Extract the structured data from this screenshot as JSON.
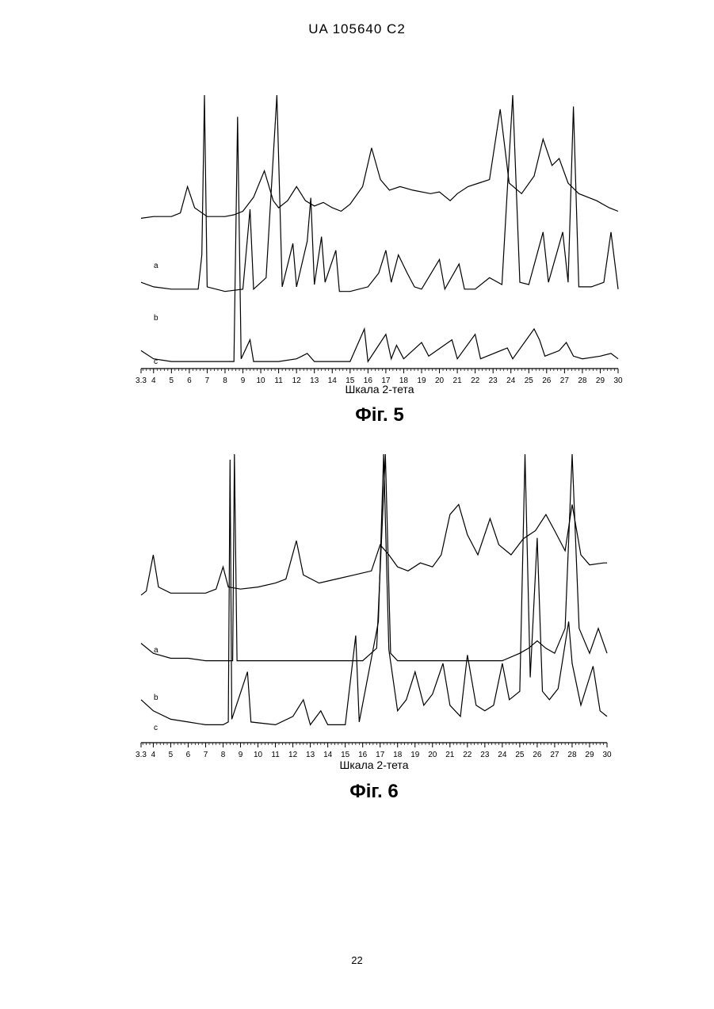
{
  "page": {
    "header": "UA   105640   C2",
    "page_number": "22"
  },
  "chart_data": [
    {
      "type": "line",
      "figure_label": "Фіг. 5",
      "xlabel": "Шкала 2-тета",
      "ylabel": "",
      "x_ticks": [
        "3.3",
        "4",
        "5",
        "6",
        "7",
        "8",
        "9",
        "10",
        "11",
        "12",
        "13",
        "14",
        "15",
        "16",
        "17",
        "18",
        "19",
        "20",
        "21",
        "22",
        "23",
        "24",
        "25",
        "26",
        "27",
        "28",
        "29",
        "30"
      ],
      "xlim": [
        3.3,
        30
      ],
      "ylim": [
        0,
        100
      ],
      "grid": false,
      "series": [
        {
          "name": "a",
          "baseline": 30,
          "points": [
            [
              3.3,
              30
            ],
            [
              4,
              31
            ],
            [
              5,
              31
            ],
            [
              5.5,
              33
            ],
            [
              5.9,
              48
            ],
            [
              6.3,
              36
            ],
            [
              7,
              31
            ],
            [
              8,
              31
            ],
            [
              8.5,
              32
            ],
            [
              9,
              34
            ],
            [
              9.6,
              42
            ],
            [
              10.2,
              57
            ],
            [
              10.7,
              40
            ],
            [
              11,
              36
            ],
            [
              11.5,
              40
            ],
            [
              12,
              48
            ],
            [
              12.5,
              40
            ],
            [
              13,
              37
            ],
            [
              13.5,
              39
            ],
            [
              14,
              36
            ],
            [
              14.5,
              34
            ],
            [
              15,
              38
            ],
            [
              15.7,
              48
            ],
            [
              16.2,
              70
            ],
            [
              16.7,
              52
            ],
            [
              17.2,
              46
            ],
            [
              17.8,
              48
            ],
            [
              18.5,
              46
            ],
            [
              19.5,
              44
            ],
            [
              20,
              45
            ],
            [
              20.6,
              40
            ],
            [
              21,
              44
            ],
            [
              21.6,
              48
            ],
            [
              22.2,
              50
            ],
            [
              22.8,
              52
            ],
            [
              23.4,
              92
            ],
            [
              23.9,
              50
            ],
            [
              24.6,
              44
            ],
            [
              25.3,
              54
            ],
            [
              25.8,
              75
            ],
            [
              26.3,
              60
            ],
            [
              26.7,
              64
            ],
            [
              27.2,
              50
            ],
            [
              27.8,
              44
            ],
            [
              28.8,
              40
            ],
            [
              29.5,
              36
            ],
            [
              30,
              34
            ]
          ]
        },
        {
          "name": "b",
          "baseline": 14,
          "points": [
            [
              3.3,
              18
            ],
            [
              4,
              16
            ],
            [
              5,
              15
            ],
            [
              6,
              15
            ],
            [
              6.5,
              15
            ],
            [
              6.7,
              30
            ],
            [
              6.85,
              100
            ],
            [
              7,
              16
            ],
            [
              8,
              14
            ],
            [
              9,
              15
            ],
            [
              9.4,
              50
            ],
            [
              9.6,
              15
            ],
            [
              10.3,
              20
            ],
            [
              10.9,
              100
            ],
            [
              11.2,
              16
            ],
            [
              11.8,
              35
            ],
            [
              12,
              16
            ],
            [
              12.6,
              36
            ],
            [
              12.8,
              55
            ],
            [
              13,
              17
            ],
            [
              13.4,
              38
            ],
            [
              13.6,
              18
            ],
            [
              14.2,
              32
            ],
            [
              14.4,
              14
            ],
            [
              15,
              14
            ],
            [
              16,
              16
            ],
            [
              16.6,
              22
            ],
            [
              17,
              32
            ],
            [
              17.3,
              18
            ],
            [
              17.7,
              30
            ],
            [
              18.2,
              22
            ],
            [
              18.6,
              16
            ],
            [
              19,
              15
            ],
            [
              20,
              28
            ],
            [
              20.3,
              15
            ],
            [
              21.1,
              26
            ],
            [
              21.4,
              15
            ],
            [
              22,
              15
            ],
            [
              22.8,
              20
            ],
            [
              23.5,
              17
            ],
            [
              24.1,
              100
            ],
            [
              24.5,
              18
            ],
            [
              25,
              17
            ],
            [
              25.8,
              40
            ],
            [
              26.1,
              18
            ],
            [
              26.9,
              40
            ],
            [
              27.2,
              18
            ],
            [
              27.5,
              95
            ],
            [
              27.8,
              16
            ],
            [
              28.5,
              16
            ],
            [
              29.2,
              18
            ],
            [
              29.6,
              40
            ],
            [
              30,
              15
            ]
          ]
        },
        {
          "name": "c",
          "baseline": 2,
          "points": [
            [
              3.3,
              6
            ],
            [
              4,
              3
            ],
            [
              5,
              2
            ],
            [
              6,
              2
            ],
            [
              7,
              2
            ],
            [
              8,
              2
            ],
            [
              8.5,
              2
            ],
            [
              8.7,
              92
            ],
            [
              8.9,
              3
            ],
            [
              9.4,
              10
            ],
            [
              9.6,
              2
            ],
            [
              11,
              2
            ],
            [
              12,
              3
            ],
            [
              12.6,
              5
            ],
            [
              13,
              2
            ],
            [
              15,
              2
            ],
            [
              15.8,
              14
            ],
            [
              16,
              2
            ],
            [
              17,
              12
            ],
            [
              17.3,
              3
            ],
            [
              17.6,
              8
            ],
            [
              18,
              3
            ],
            [
              19,
              9
            ],
            [
              19.4,
              4
            ],
            [
              20.7,
              10
            ],
            [
              21,
              3
            ],
            [
              22,
              12
            ],
            [
              22.3,
              3
            ],
            [
              23.8,
              7
            ],
            [
              24.1,
              3
            ],
            [
              25.3,
              14
            ],
            [
              25.6,
              10
            ],
            [
              25.9,
              4
            ],
            [
              26.7,
              6
            ],
            [
              27.1,
              9
            ],
            [
              27.5,
              4
            ],
            [
              28,
              3
            ],
            [
              29,
              4
            ],
            [
              29.6,
              5
            ],
            [
              30,
              3
            ]
          ]
        }
      ]
    },
    {
      "type": "line",
      "figure_label": "Фіг. 6",
      "xlabel": "Шкала 2-тета",
      "ylabel": "",
      "x_ticks": [
        "3.3",
        "4",
        "5",
        "6",
        "7",
        "8",
        "9",
        "10",
        "11",
        "12",
        "13",
        "14",
        "15",
        "16",
        "17",
        "18",
        "19",
        "20",
        "21",
        "22",
        "23",
        "24",
        "25",
        "26",
        "27",
        "28",
        "29",
        "30"
      ],
      "xlim": [
        3.3,
        30
      ],
      "ylim": [
        0,
        100
      ],
      "grid": false,
      "series": [
        {
          "name": "a",
          "baseline": 30,
          "points": [
            [
              3.3,
              30
            ],
            [
              3.6,
              32
            ],
            [
              4,
              50
            ],
            [
              4.3,
              34
            ],
            [
              5,
              31
            ],
            [
              6,
              31
            ],
            [
              7,
              31
            ],
            [
              7.6,
              33
            ],
            [
              8,
              44
            ],
            [
              8.3,
              34
            ],
            [
              9,
              33
            ],
            [
              10,
              34
            ],
            [
              11,
              36
            ],
            [
              11.6,
              38
            ],
            [
              12.2,
              57
            ],
            [
              12.6,
              40
            ],
            [
              13.5,
              36
            ],
            [
              14.5,
              38
            ],
            [
              15.5,
              40
            ],
            [
              16.5,
              42
            ],
            [
              17,
              55
            ],
            [
              17.5,
              50
            ],
            [
              18,
              44
            ],
            [
              18.6,
              42
            ],
            [
              19.3,
              46
            ],
            [
              20,
              44
            ],
            [
              20.5,
              50
            ],
            [
              21,
              70
            ],
            [
              21.5,
              75
            ],
            [
              22,
              60
            ],
            [
              22.6,
              50
            ],
            [
              23.3,
              68
            ],
            [
              23.8,
              55
            ],
            [
              24.5,
              50
            ],
            [
              25.2,
              58
            ],
            [
              25.9,
              62
            ],
            [
              26.5,
              70
            ],
            [
              27,
              62
            ],
            [
              27.6,
              52
            ],
            [
              28,
              75
            ],
            [
              28.5,
              50
            ],
            [
              29,
              45
            ],
            [
              29.8,
              46
            ],
            [
              30,
              46
            ]
          ]
        },
        {
          "name": "b",
          "baseline": 16,
          "points": [
            [
              3.3,
              24
            ],
            [
              4,
              20
            ],
            [
              5,
              18
            ],
            [
              6,
              18
            ],
            [
              7,
              17
            ],
            [
              8,
              17
            ],
            [
              8.55,
              17
            ],
            [
              8.65,
              100
            ],
            [
              8.8,
              17
            ],
            [
              10,
              17
            ],
            [
              11,
              17
            ],
            [
              12,
              17
            ],
            [
              13,
              17
            ],
            [
              14,
              17
            ],
            [
              15,
              17
            ],
            [
              16,
              17
            ],
            [
              16.8,
              22
            ],
            [
              17.3,
              100
            ],
            [
              17.6,
              20
            ],
            [
              18,
              17
            ],
            [
              19,
              17
            ],
            [
              20,
              17
            ],
            [
              21,
              17
            ],
            [
              22,
              17
            ],
            [
              23,
              17
            ],
            [
              24,
              17
            ],
            [
              25,
              20
            ],
            [
              25.5,
              22
            ],
            [
              26,
              25
            ],
            [
              26.5,
              22
            ],
            [
              27,
              20
            ],
            [
              27.6,
              30
            ],
            [
              28,
              100
            ],
            [
              28.4,
              30
            ],
            [
              29,
              20
            ],
            [
              29.5,
              30
            ],
            [
              30,
              20
            ]
          ]
        },
        {
          "name": "c",
          "baseline": 2,
          "points": [
            [
              3.3,
              12
            ],
            [
              4,
              8
            ],
            [
              5,
              5
            ],
            [
              6,
              4
            ],
            [
              7,
              3
            ],
            [
              8,
              3
            ],
            [
              8.3,
              4
            ],
            [
              8.4,
              98
            ],
            [
              8.5,
              5
            ],
            [
              9.4,
              22
            ],
            [
              9.6,
              4
            ],
            [
              11,
              3
            ],
            [
              12,
              6
            ],
            [
              12.6,
              12
            ],
            [
              13,
              3
            ],
            [
              13.6,
              8
            ],
            [
              14,
              3
            ],
            [
              15,
              3
            ],
            [
              15.6,
              35
            ],
            [
              15.8,
              4
            ],
            [
              16.9,
              40
            ],
            [
              17.2,
              100
            ],
            [
              17.5,
              30
            ],
            [
              18,
              8
            ],
            [
              18.5,
              12
            ],
            [
              19,
              22
            ],
            [
              19.5,
              10
            ],
            [
              20,
              14
            ],
            [
              20.6,
              25
            ],
            [
              21,
              10
            ],
            [
              21.6,
              6
            ],
            [
              22,
              28
            ],
            [
              22.5,
              10
            ],
            [
              23,
              8
            ],
            [
              23.5,
              10
            ],
            [
              24,
              25
            ],
            [
              24.4,
              12
            ],
            [
              25,
              15
            ],
            [
              25.3,
              100
            ],
            [
              25.6,
              20
            ],
            [
              26,
              70
            ],
            [
              26.3,
              15
            ],
            [
              26.7,
              12
            ],
            [
              27.2,
              16
            ],
            [
              27.8,
              40
            ],
            [
              28,
              25
            ],
            [
              28.5,
              10
            ],
            [
              29.2,
              24
            ],
            [
              29.6,
              8
            ],
            [
              30,
              6
            ]
          ]
        }
      ]
    }
  ]
}
